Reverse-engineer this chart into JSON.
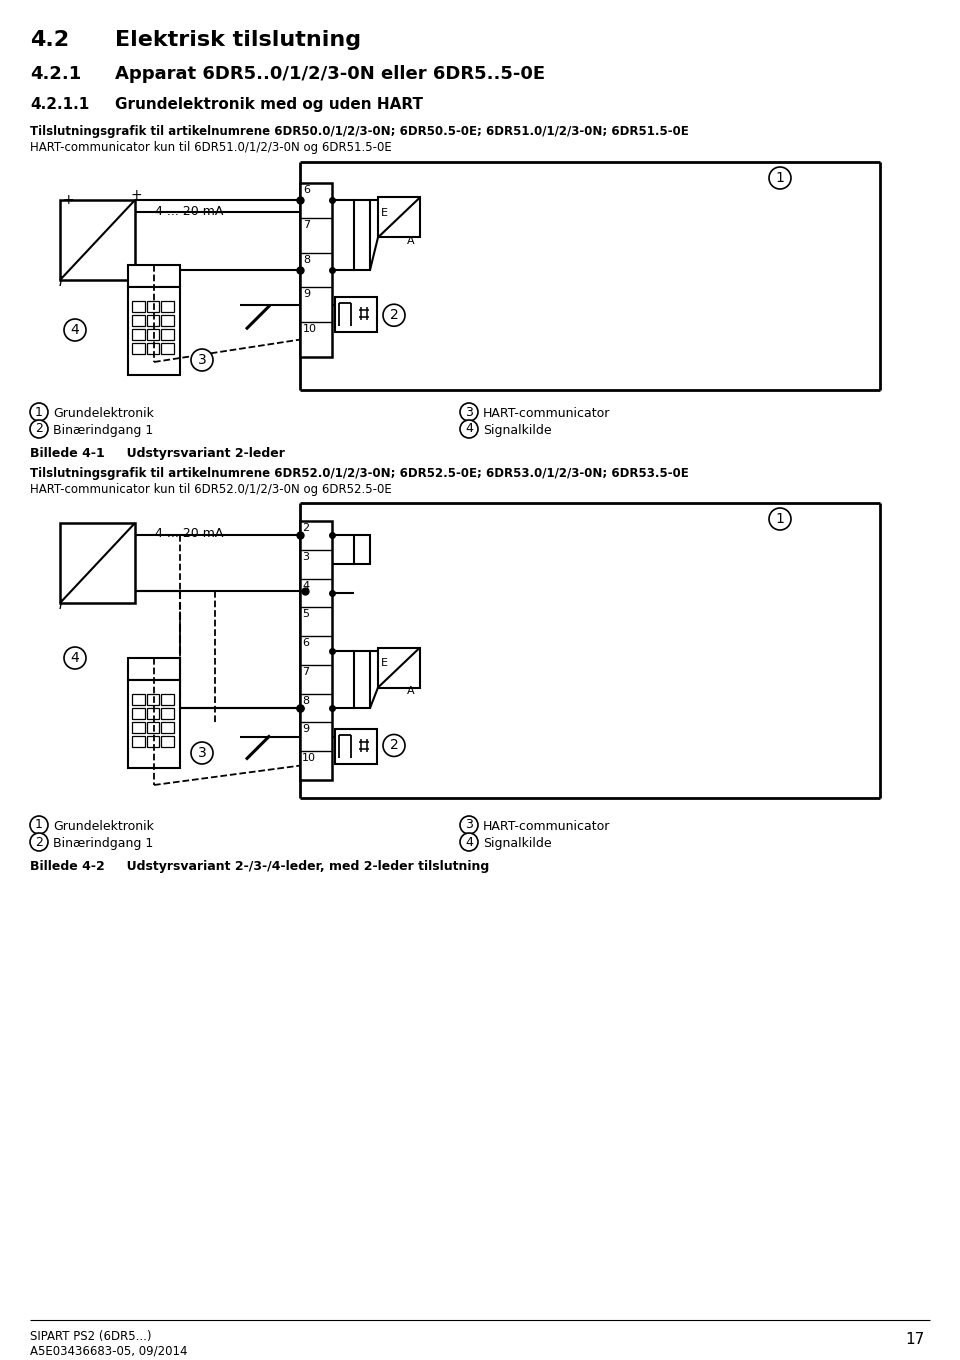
{
  "title_42": "4.2",
  "title_42_text": "Elektrisk tilslutning",
  "title_421": "4.2.1",
  "title_421_text": "Apparat 6DR5..0/1/2/3-0N eller 6DR5..5-0E",
  "title_4211": "4.2.1.1",
  "title_4211_text": "Grundelektronik med og uden HART",
  "subtitle1": "Tilslutningsgrafik til artikelnumrene 6DR50.0/1/2/3-0N; 6DR50.5-0E; 6DR51.0/1/2/3-0N; 6DR51.5-0E",
  "subtitle1b": "HART-communicator kun til 6DR51.0/1/2/3-0N og 6DR51.5-0E",
  "subtitle2": "Tilslutningsgrafik til artikelnumrene 6DR52.0/1/2/3-0N; 6DR52.5-0E; 6DR53.0/1/2/3-0N; 6DR53.5-0E",
  "subtitle2b": "HART-communicator kun til 6DR52.0/1/2/3-0N og 6DR52.5-0E",
  "legend1": [
    "Grundelektronik",
    "Binærindgang 1",
    "HART-communicator",
    "Signalkilde"
  ],
  "billede1": "Billede 4-1     Udstyrsvariant 2-leder",
  "billede2": "Billede 4-2     Udstyrsvariant 2-/3-/4-leder, med 2-leder tilslutning",
  "footer_line1": "SIPART PS2 (6DR5...)",
  "footer_line2": "A5E03436683-05, 09/2014",
  "footer_page": "17",
  "bg_color": "#ffffff",
  "text_color": "#000000"
}
